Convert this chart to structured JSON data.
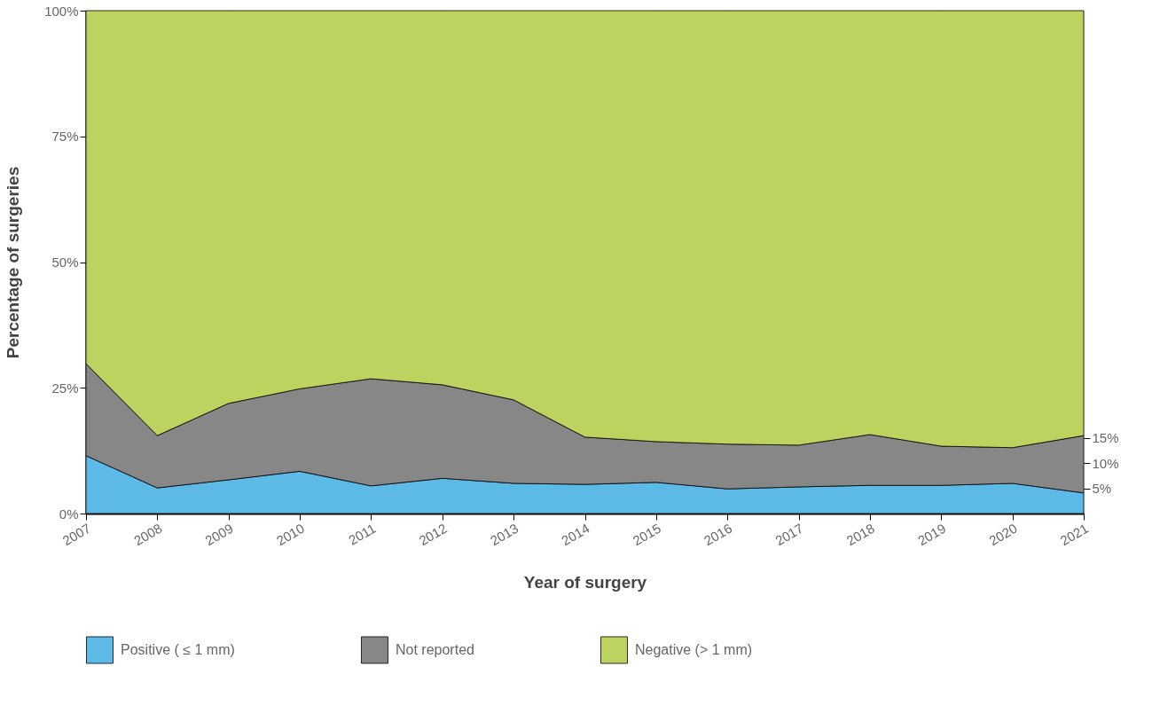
{
  "chart_data": {
    "type": "area",
    "stacked": true,
    "xlabel": "Year of surgery",
    "ylabel": "Percentage of surgeries",
    "x": [
      2007,
      2008,
      2009,
      2010,
      2011,
      2012,
      2013,
      2014,
      2015,
      2016,
      2017,
      2018,
      2019,
      2020,
      2021
    ],
    "xlim": [
      2007,
      2021
    ],
    "xticks": [
      2007,
      2008,
      2009,
      2010,
      2011,
      2012,
      2013,
      2014,
      2015,
      2016,
      2017,
      2018,
      2019,
      2020,
      2021
    ],
    "ylim": [
      0,
      100
    ],
    "yticks": [
      {
        "value": 0,
        "label": "0%"
      },
      {
        "value": 25,
        "label": "25%"
      },
      {
        "value": 50,
        "label": "50%"
      },
      {
        "value": 75,
        "label": "75%"
      },
      {
        "value": 100,
        "label": "100%"
      }
    ],
    "y2lim": [
      0,
      100
    ],
    "y2ticks": [
      {
        "value": 5,
        "label": "5%"
      },
      {
        "value": 10,
        "label": "10%"
      },
      {
        "value": 15,
        "label": "15%"
      }
    ],
    "legend": "bottom",
    "series": [
      {
        "name": "Positive ( ≤ 1 mm)",
        "color": "#5dbae6",
        "values": [
          11.5,
          5.1,
          6.7,
          8.4,
          5.5,
          7.0,
          6.0,
          5.8,
          6.2,
          4.9,
          5.3,
          5.6,
          5.6,
          6.0,
          4.1
        ]
      },
      {
        "name": "Not reported",
        "color": "#878787",
        "values": [
          18.3,
          10.4,
          15.2,
          16.4,
          21.3,
          18.6,
          16.6,
          9.4,
          8.1,
          8.9,
          8.3,
          10.1,
          7.8,
          7.1,
          11.4
        ]
      },
      {
        "name": "Negative (> 1 mm)",
        "color": "#bdd35f",
        "values": [
          70.2,
          84.5,
          78.1,
          75.2,
          73.2,
          74.4,
          77.4,
          84.8,
          85.7,
          86.2,
          86.4,
          84.3,
          86.6,
          86.9,
          84.5
        ]
      }
    ]
  }
}
